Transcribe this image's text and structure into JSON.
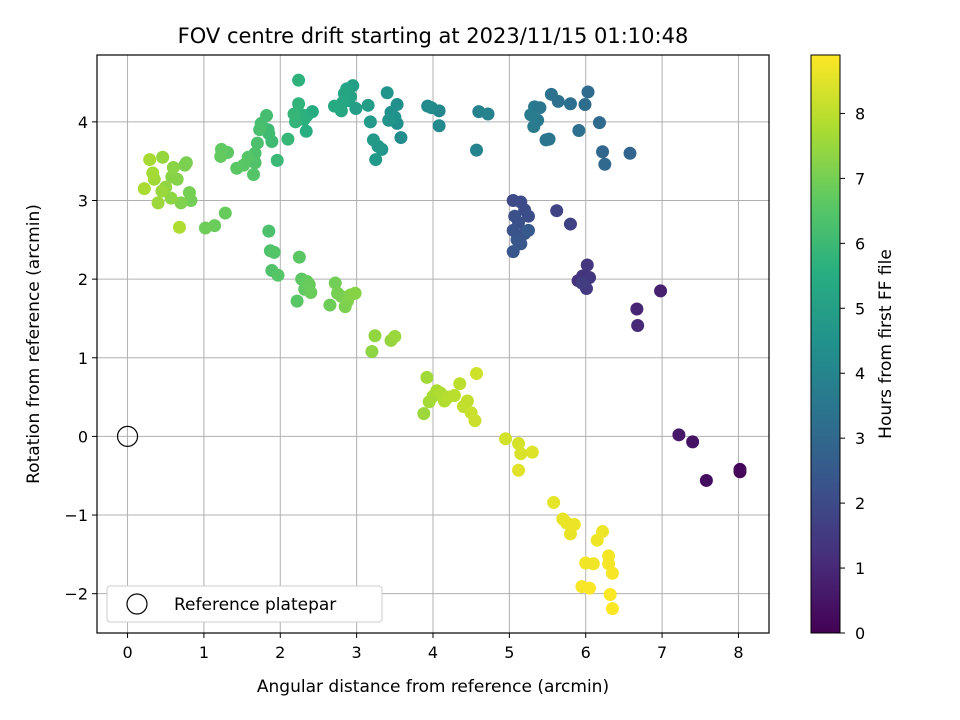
{
  "chart_data": {
    "type": "scatter",
    "title": "FOV centre drift starting at 2023/11/15 01:10:48",
    "xlabel": "Angular distance from reference (arcmin)",
    "ylabel": "Rotation from reference (arcmin)",
    "xlim": [
      -0.4,
      8.4
    ],
    "ylim": [
      -2.5,
      4.85
    ],
    "xticks": [
      0,
      1,
      2,
      3,
      4,
      5,
      6,
      7,
      8
    ],
    "yticks": [
      -2,
      -1,
      0,
      1,
      2,
      3,
      4
    ],
    "grid": true,
    "colormap": "viridis",
    "colorbar": {
      "label": "Hours from first FF file",
      "range": [
        0,
        8.9
      ],
      "ticks": [
        0,
        1,
        2,
        3,
        4,
        5,
        6,
        7,
        8
      ]
    },
    "legend": {
      "placement": "lower-left",
      "entries": [
        {
          "label": "Reference platepar",
          "marker": "open-circle",
          "color": "#000000"
        }
      ]
    },
    "reference_point": {
      "x": 0,
      "y": 0
    },
    "series": [
      {
        "marker": "filled-circle",
        "points": [
          [
            8.02,
            -0.42,
            0.1
          ],
          [
            8.02,
            -0.45,
            0.15
          ],
          [
            7.58,
            -0.56,
            0.3
          ],
          [
            7.4,
            -0.07,
            0.45
          ],
          [
            7.22,
            0.02,
            0.6
          ],
          [
            6.98,
            1.85,
            0.8
          ],
          [
            6.67,
            1.62,
            0.95
          ],
          [
            6.68,
            1.41,
            1.05
          ],
          [
            5.9,
            1.98,
            1.3
          ],
          [
            5.96,
            2.04,
            1.35
          ],
          [
            6.02,
            2.18,
            1.4
          ],
          [
            6.05,
            2.02,
            1.45
          ],
          [
            6.01,
            1.88,
            1.5
          ],
          [
            5.95,
            1.95,
            1.55
          ],
          [
            5.8,
            2.7,
            1.75
          ],
          [
            5.62,
            2.87,
            1.8
          ],
          [
            5.05,
            3.0,
            1.95
          ],
          [
            5.15,
            2.98,
            2.0
          ],
          [
            5.2,
            2.88,
            2.05
          ],
          [
            5.25,
            2.8,
            2.1
          ],
          [
            5.07,
            2.8,
            2.15
          ],
          [
            5.12,
            2.72,
            2.2
          ],
          [
            5.05,
            2.62,
            2.25
          ],
          [
            5.2,
            2.58,
            2.3
          ],
          [
            5.1,
            2.5,
            2.35
          ],
          [
            5.15,
            2.45,
            2.4
          ],
          [
            5.05,
            2.35,
            2.45
          ],
          [
            5.25,
            2.62,
            2.5
          ],
          [
            6.58,
            3.6,
            2.9
          ],
          [
            6.22,
            3.62,
            2.95
          ],
          [
            6.25,
            3.46,
            3.0
          ],
          [
            6.18,
            3.99,
            3.05
          ],
          [
            6.03,
            4.38,
            3.1
          ],
          [
            5.99,
            4.22,
            3.15
          ],
          [
            5.91,
            3.89,
            3.2
          ],
          [
            5.8,
            4.23,
            3.25
          ],
          [
            5.64,
            4.26,
            3.3
          ],
          [
            5.55,
            4.35,
            3.35
          ],
          [
            5.52,
            3.78,
            3.4
          ],
          [
            5.48,
            3.77,
            3.45
          ],
          [
            5.4,
            4.18,
            3.5
          ],
          [
            5.33,
            4.19,
            3.55
          ],
          [
            5.37,
            4.02,
            3.6
          ],
          [
            5.32,
            3.94,
            3.65
          ],
          [
            5.28,
            4.09,
            3.7
          ],
          [
            4.72,
            4.1,
            3.9
          ],
          [
            4.6,
            4.13,
            3.95
          ],
          [
            4.57,
            3.64,
            4.0
          ],
          [
            4.08,
            4.14,
            4.1
          ],
          [
            4.08,
            3.95,
            4.15
          ],
          [
            3.98,
            4.18,
            4.2
          ],
          [
            3.93,
            4.2,
            4.25
          ],
          [
            3.58,
            3.8,
            4.3
          ],
          [
            3.53,
            3.98,
            4.35
          ],
          [
            3.53,
            4.22,
            4.4
          ],
          [
            3.5,
            4.06,
            4.45
          ],
          [
            3.45,
            4.12,
            4.5
          ],
          [
            3.42,
            4.02,
            4.55
          ],
          [
            3.4,
            4.37,
            4.6
          ],
          [
            3.33,
            3.65,
            4.65
          ],
          [
            3.28,
            3.69,
            4.7
          ],
          [
            3.25,
            3.52,
            4.75
          ],
          [
            3.22,
            3.77,
            4.8
          ],
          [
            3.18,
            4.0,
            4.85
          ],
          [
            3.15,
            4.21,
            4.9
          ],
          [
            2.99,
            4.17,
            4.95
          ],
          [
            2.95,
            4.46,
            5.0
          ],
          [
            2.92,
            4.32,
            5.05
          ],
          [
            2.9,
            4.27,
            5.1
          ],
          [
            2.87,
            4.42,
            5.15
          ],
          [
            2.84,
            4.36,
            5.2
          ],
          [
            2.82,
            4.25,
            5.25
          ],
          [
            2.8,
            4.14,
            5.3
          ],
          [
            2.77,
            4.2,
            5.35
          ],
          [
            2.71,
            4.2,
            5.4
          ],
          [
            2.42,
            4.13,
            5.45
          ],
          [
            2.35,
            4.08,
            5.5
          ],
          [
            2.34,
            3.88,
            5.55
          ],
          [
            2.31,
            4.03,
            5.6
          ],
          [
            2.28,
            4.09,
            5.65
          ],
          [
            2.24,
            4.53,
            5.7
          ],
          [
            2.24,
            4.23,
            5.75
          ],
          [
            2.2,
            4.0,
            5.8
          ],
          [
            2.18,
            4.1,
            5.85
          ],
          [
            2.1,
            3.78,
            5.9
          ],
          [
            1.96,
            3.51,
            5.95
          ],
          [
            1.84,
            3.9,
            6.0
          ],
          [
            1.89,
            3.75,
            6.05
          ],
          [
            1.85,
            3.85,
            6.1
          ],
          [
            1.82,
            4.08,
            6.15
          ],
          [
            1.75,
            3.98,
            6.2
          ],
          [
            1.73,
            3.9,
            6.25
          ],
          [
            1.7,
            3.73,
            6.3
          ],
          [
            1.67,
            3.6,
            6.35
          ],
          [
            1.67,
            3.48,
            6.4
          ],
          [
            1.65,
            3.33,
            6.45
          ],
          [
            1.58,
            3.55,
            6.5
          ],
          [
            1.52,
            3.45,
            6.55
          ],
          [
            1.43,
            3.41,
            6.6
          ],
          [
            1.31,
            3.61,
            6.65
          ],
          [
            1.23,
            3.65,
            6.7
          ],
          [
            1.22,
            3.56,
            6.75
          ],
          [
            1.28,
            2.84,
            6.8
          ],
          [
            1.14,
            2.68,
            6.85
          ],
          [
            1.02,
            2.65,
            6.9
          ],
          [
            0.83,
            3.0,
            6.95
          ],
          [
            0.81,
            3.1,
            7.0
          ],
          [
            0.77,
            3.48,
            7.05
          ],
          [
            0.75,
            3.45,
            7.1
          ],
          [
            0.7,
            2.97,
            7.15
          ],
          [
            0.65,
            3.27,
            7.2
          ],
          [
            0.58,
            3.3,
            7.25
          ],
          [
            0.6,
            3.42,
            7.3
          ],
          [
            0.57,
            3.03,
            7.35
          ],
          [
            0.5,
            3.17,
            7.4
          ],
          [
            0.46,
            3.55,
            7.45
          ],
          [
            0.45,
            3.12,
            7.5
          ],
          [
            0.4,
            2.97,
            7.55
          ],
          [
            0.35,
            3.27,
            7.6
          ],
          [
            0.33,
            3.35,
            7.65
          ],
          [
            0.29,
            3.52,
            7.7
          ],
          [
            0.22,
            3.15,
            7.75
          ],
          [
            0.68,
            2.66,
            7.8
          ]
        ]
      },
      {
        "marker": "filled-circle",
        "points": [
          [
            1.85,
            2.61,
            6.3
          ],
          [
            1.87,
            2.36,
            6.35
          ],
          [
            1.89,
            2.11,
            6.4
          ],
          [
            1.92,
            2.34,
            6.45
          ],
          [
            1.97,
            2.05,
            6.5
          ],
          [
            2.22,
            1.72,
            6.55
          ],
          [
            2.25,
            2.28,
            6.6
          ],
          [
            2.28,
            2.0,
            6.65
          ],
          [
            2.32,
            1.87,
            6.7
          ],
          [
            2.35,
            1.97,
            6.75
          ],
          [
            2.38,
            1.93,
            6.8
          ],
          [
            2.4,
            1.83,
            6.85
          ],
          [
            2.65,
            1.67,
            6.9
          ],
          [
            2.72,
            1.95,
            6.95
          ],
          [
            2.75,
            1.82,
            7.0
          ],
          [
            2.8,
            1.78,
            7.05
          ],
          [
            2.85,
            1.65,
            7.1
          ],
          [
            2.88,
            1.72,
            7.15
          ],
          [
            2.92,
            1.8,
            7.2
          ],
          [
            2.98,
            1.82,
            7.25
          ],
          [
            3.2,
            1.08,
            7.35
          ],
          [
            3.24,
            1.28,
            7.4
          ],
          [
            3.45,
            1.22,
            7.45
          ],
          [
            3.5,
            1.27,
            7.5
          ],
          [
            3.88,
            0.29,
            7.55
          ],
          [
            3.92,
            0.75,
            7.6
          ],
          [
            3.95,
            0.44,
            7.65
          ],
          [
            4.0,
            0.51,
            7.7
          ],
          [
            4.05,
            0.58,
            7.75
          ],
          [
            4.1,
            0.55,
            7.8
          ],
          [
            4.15,
            0.45,
            7.85
          ],
          [
            4.2,
            0.5,
            7.9
          ],
          [
            4.28,
            0.52,
            7.95
          ],
          [
            4.35,
            0.67,
            8.0
          ],
          [
            4.4,
            0.38,
            8.05
          ],
          [
            4.45,
            0.45,
            8.1
          ],
          [
            4.5,
            0.3,
            8.15
          ],
          [
            4.55,
            0.2,
            8.2
          ],
          [
            4.57,
            0.8,
            8.25
          ],
          [
            4.95,
            -0.03,
            8.3
          ],
          [
            5.12,
            -0.09,
            8.35
          ],
          [
            5.15,
            -0.22,
            8.4
          ],
          [
            5.3,
            -0.2,
            8.45
          ],
          [
            5.12,
            -0.43,
            8.5
          ],
          [
            5.58,
            -0.84,
            8.55
          ],
          [
            5.7,
            -1.05,
            8.6
          ],
          [
            5.75,
            -1.1,
            8.62
          ],
          [
            5.8,
            -1.24,
            8.64
          ],
          [
            5.85,
            -1.12,
            8.66
          ],
          [
            6.22,
            -1.21,
            8.68
          ],
          [
            6.15,
            -1.32,
            8.7
          ],
          [
            6.0,
            -1.61,
            8.72
          ],
          [
            6.1,
            -1.62,
            8.74
          ],
          [
            6.3,
            -1.52,
            8.76
          ],
          [
            6.3,
            -1.62,
            8.78
          ],
          [
            6.35,
            -1.74,
            8.8
          ],
          [
            5.95,
            -1.91,
            8.82
          ],
          [
            6.05,
            -1.93,
            8.84
          ],
          [
            6.32,
            -2.01,
            8.86
          ],
          [
            6.35,
            -2.19,
            8.88
          ]
        ]
      }
    ]
  }
}
